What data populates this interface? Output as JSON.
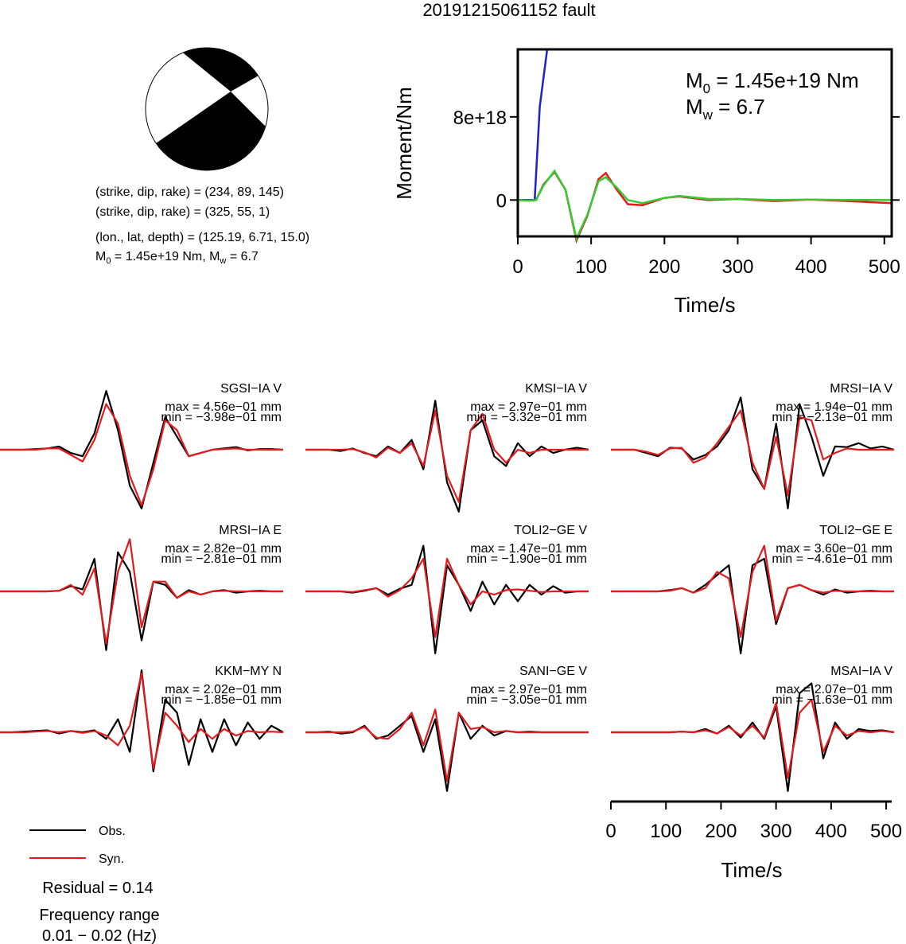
{
  "title": "20191215061152 fault",
  "mechanism": {
    "line1": "(strike, dip, rake) = (234, 89, 145)",
    "line2": "(strike, dip, rake) = (325, 55, 1)",
    "line3": "(lon., lat, depth) = (125.19, 6.71, 15.0)",
    "m0_label": "M",
    "m0_sub": "0",
    "m0_text": " = 1.45e+19 Nm, M",
    "mw_sub": "w",
    "mw_text": " = 6.7"
  },
  "colors": {
    "obs": "#000000",
    "syn": "#e41a1c",
    "cumulative": "#1f1fcc",
    "rate_green": "#33cc33"
  },
  "chart_data": [
    {
      "type": "line",
      "ylabel": "Moment/Nm",
      "xlabel": "Time/s",
      "xlim": [
        0,
        510
      ],
      "ylim": [
        -3.5e+18,
        1.45e+19
      ],
      "xticks": [
        0,
        100,
        200,
        300,
        400,
        500
      ],
      "xtick_labels": [
        "0",
        "100",
        "200",
        "300",
        "400",
        "500"
      ],
      "yticks": [
        0,
        8e+18
      ],
      "ytick_labels": [
        "0",
        "8e+18"
      ],
      "annotation": {
        "m0_label": "M",
        "m0_sub": "0",
        "m0_value": " = 1.45e+19 Nm",
        "mw_label": "M",
        "mw_sub": "w",
        "mw_value": " = 6.7"
      },
      "series": [
        {
          "color": "blue",
          "x": [
            0,
            23,
            30,
            40,
            510
          ],
          "y": [
            0,
            0,
            9e+18,
            1.45e+19,
            1.45e+19
          ]
        },
        {
          "color": "red",
          "x": [
            0,
            15,
            25,
            35,
            50,
            65,
            80,
            95,
            110,
            120,
            135,
            150,
            170,
            200,
            220,
            260,
            300,
            350,
            400,
            450,
            510
          ],
          "y": [
            0,
            -5e+16,
            0,
            1.5e+18,
            2.7e+18,
            1e+18,
            -3.9e+18,
            -1.5e+18,
            2e+18,
            2.6e+18,
            1e+18,
            -4e+17,
            -5e+17,
            2e+17,
            3.5e+17,
            0,
            1e+17,
            -1e+17,
            5e+16,
            -1e+17,
            -3e+17
          ]
        },
        {
          "color": "green",
          "x": [
            0,
            15,
            25,
            35,
            50,
            65,
            80,
            95,
            110,
            120,
            135,
            150,
            170,
            200,
            220,
            260,
            300,
            350,
            400,
            450,
            510
          ],
          "y": [
            0,
            -5e+16,
            0,
            1.4e+18,
            2.8e+18,
            1e+18,
            -3.7e+18,
            -1.4e+18,
            1.8e+18,
            2.2e+18,
            1.2e+18,
            0,
            -3e+17,
            2e+17,
            4e+17,
            1e+17,
            1e+17,
            0,
            5e+16,
            0,
            0
          ]
        }
      ]
    },
    {
      "type": "line",
      "xlabel": "Time/s",
      "xlim": [
        0,
        510
      ],
      "xticks": [
        0,
        100,
        200,
        300,
        400,
        500
      ],
      "xtick_labels": [
        "0",
        "100",
        "200",
        "300",
        "400",
        "500"
      ],
      "legend": {
        "position": "bottom-left",
        "entries": [
          "Obs.",
          "Syn."
        ]
      },
      "notes": [
        "Residual = 0.14",
        "Frequency range",
        "0.01 − 0.02 (Hz)"
      ],
      "stations": [
        {
          "name": "SGSI−IA V",
          "max": "max = 4.56e−01 mm",
          "min": "min = −3.98e−01 mm",
          "obs": [
            0,
            0,
            0,
            0.01,
            0.02,
            0.05,
            -0.05,
            -0.1,
            0.25,
            0.9,
            0.3,
            -0.55,
            -0.9,
            -0.2,
            0.5,
            0.2,
            -0.1,
            -0.05,
            0,
            0.02,
            0.04,
            -0.01,
            0.01,
            0.01,
            0
          ],
          "syn": [
            0,
            0,
            0,
            0.0,
            0.02,
            0.02,
            -0.08,
            -0.18,
            0.15,
            0.7,
            0.4,
            -0.4,
            -0.85,
            -0.3,
            0.45,
            0.3,
            -0.1,
            -0.05,
            0,
            0.01,
            0.02,
            0,
            0,
            0,
            0
          ]
        },
        {
          "name": "KMSI−IA V",
          "max": "max = 2.97e−01 mm",
          "min": "min = −3.32e−01 mm",
          "obs": [
            0,
            0,
            0,
            -0.02,
            0.02,
            -0.05,
            -0.1,
            0.05,
            -0.05,
            0.15,
            -0.3,
            0.75,
            -0.5,
            -0.95,
            0.3,
            0.45,
            -0.1,
            -0.25,
            0.1,
            -0.1,
            0.05,
            -0.05,
            0,
            0.03,
            0
          ],
          "syn": [
            0,
            0,
            0,
            0,
            0.01,
            -0.04,
            -0.12,
            0.03,
            -0.05,
            0.1,
            -0.25,
            0.6,
            -0.4,
            -0.8,
            0.3,
            0.55,
            0,
            -0.2,
            0,
            -0.05,
            0,
            0,
            0,
            0,
            0
          ]
        },
        {
          "name": "MRSI−IA V",
          "max": "max = 1.94e−01 mm",
          "min": "min = −2.13e−01 mm",
          "obs": [
            0,
            0,
            0,
            -0.05,
            -0.1,
            0.03,
            0.02,
            -0.15,
            -0.08,
            0.05,
            0.3,
            0.8,
            -0.3,
            -0.6,
            0.4,
            -0.9,
            0.7,
            0.2,
            -0.4,
            0.05,
            0.04,
            0.1,
            0.02,
            0.05,
            0
          ],
          "syn": [
            0,
            0,
            0,
            -0.03,
            -0.08,
            0.02,
            0.03,
            -0.2,
            -0.12,
            0.1,
            0.35,
            0.6,
            -0.2,
            -0.6,
            0.2,
            -0.7,
            0.5,
            0.45,
            -0.15,
            -0.05,
            0.02,
            0,
            0,
            0,
            0
          ]
        },
        {
          "name": "MRSI−IA E",
          "max": "max = 2.82e−01 mm",
          "min": "min = −2.81e−01 mm",
          "obs": [
            0,
            0,
            0,
            0,
            0,
            0.01,
            0.08,
            0.03,
            0.5,
            -0.9,
            0.6,
            0.3,
            -0.75,
            0.15,
            0.1,
            -0.1,
            0.02,
            -0.05,
            0,
            0.02,
            -0.02,
            0,
            0.01,
            0,
            0
          ],
          "syn": [
            0,
            0,
            0,
            0,
            0,
            0.01,
            0.1,
            -0.05,
            0.35,
            -0.8,
            0.3,
            0.8,
            -0.55,
            0.15,
            0.15,
            -0.1,
            0,
            -0.05,
            0,
            0.01,
            0,
            0,
            0,
            0,
            0
          ]
        },
        {
          "name": "TOLI2−GE V",
          "max": "max = 1.47e−01 mm",
          "min": "min = −1.90e−01 mm",
          "obs": [
            0,
            0,
            0,
            0,
            -0.02,
            0.01,
            0.05,
            -0.05,
            0.04,
            0.1,
            0.7,
            -0.95,
            0.4,
            0.1,
            -0.3,
            0.15,
            -0.2,
            0.1,
            -0.15,
            0.1,
            -0.05,
            0.08,
            -0.02,
            0,
            0
          ],
          "syn": [
            0,
            0,
            0,
            0,
            -0.01,
            0.02,
            0.05,
            -0.08,
            0.02,
            0.2,
            0.5,
            -0.7,
            0.5,
            0.1,
            -0.2,
            0,
            -0.05,
            0.02,
            0.03,
            0.01,
            -0.01,
            0,
            0,
            0,
            0
          ]
        },
        {
          "name": "TOLI2−GE E",
          "max": "max = 3.60e−01 mm",
          "min": "min = −4.61e−01 mm",
          "obs": [
            0,
            0,
            0,
            0,
            0,
            0.02,
            0.05,
            -0.02,
            0.1,
            0.25,
            0.4,
            -0.95,
            0.4,
            0.5,
            -0.5,
            0.05,
            0.1,
            0.02,
            -0.05,
            0.03,
            -0.02,
            0,
            0.01,
            0,
            0
          ],
          "syn": [
            0,
            0,
            0,
            0,
            0,
            0.01,
            0.05,
            -0.02,
            0.05,
            0.3,
            0.2,
            -0.7,
            0.3,
            0.7,
            -0.45,
            0.05,
            0.1,
            0.02,
            -0.02,
            0.01,
            0,
            0,
            0,
            0,
            0
          ]
        },
        {
          "name": "KKM−MY N",
          "max": "max = 2.02e−01 mm",
          "min": "min = −1.85e−01 mm",
          "obs": [
            0,
            0,
            0.01,
            0.02,
            0.03,
            -0.02,
            0.02,
            0,
            0.03,
            -0.1,
            0.2,
            -0.3,
            0.95,
            -0.6,
            0.5,
            0.3,
            -0.5,
            0.2,
            -0.3,
            0.2,
            -0.2,
            0.15,
            -0.1,
            0.1,
            0
          ],
          "syn": [
            0,
            0,
            0,
            0.01,
            0.02,
            0,
            0.02,
            -0.01,
            0.02,
            -0.05,
            -0.2,
            0.1,
            0.9,
            -0.55,
            0.3,
            0.1,
            -0.15,
            0.05,
            -0.1,
            0.05,
            -0.05,
            0.02,
            0,
            0.01,
            0
          ]
        },
        {
          "name": "SANI−GE V",
          "max": "max = 2.97e−01 mm",
          "min": "min = −3.05e−01 mm",
          "obs": [
            0,
            0,
            0.01,
            -0.02,
            0,
            0.1,
            -0.1,
            -0.05,
            0.1,
            0.25,
            -0.3,
            0.2,
            -0.9,
            0.3,
            -0.1,
            0.1,
            -0.05,
            0.02,
            0,
            0.01,
            0,
            0,
            0,
            0,
            0
          ],
          "syn": [
            0,
            0,
            0,
            0,
            0.01,
            0.08,
            -0.08,
            -0.1,
            0.05,
            0.3,
            -0.2,
            0.35,
            -0.75,
            0.3,
            0.05,
            0.08,
            0,
            0.02,
            0,
            0,
            0,
            0,
            0,
            0,
            0
          ]
        },
        {
          "name": "MSAI−IA V",
          "max": "max = 2.07e−01 mm",
          "min": "min = −1.63e−01 mm",
          "obs": [
            0,
            0,
            0,
            0,
            0,
            0,
            0.01,
            0,
            0.05,
            -0.02,
            0.1,
            -0.08,
            0.15,
            -0.1,
            0.4,
            -0.9,
            0.6,
            0.75,
            -0.4,
            0.15,
            -0.1,
            0.05,
            0.02,
            0.03,
            0
          ],
          "syn": [
            0,
            0,
            0,
            0,
            0,
            0,
            0.01,
            0,
            0.03,
            -0.02,
            0.08,
            -0.05,
            0.1,
            -0.08,
            0.45,
            -0.7,
            0.3,
            0.5,
            -0.3,
            0.1,
            -0.05,
            0.02,
            0,
            0.02,
            0
          ]
        }
      ]
    }
  ]
}
